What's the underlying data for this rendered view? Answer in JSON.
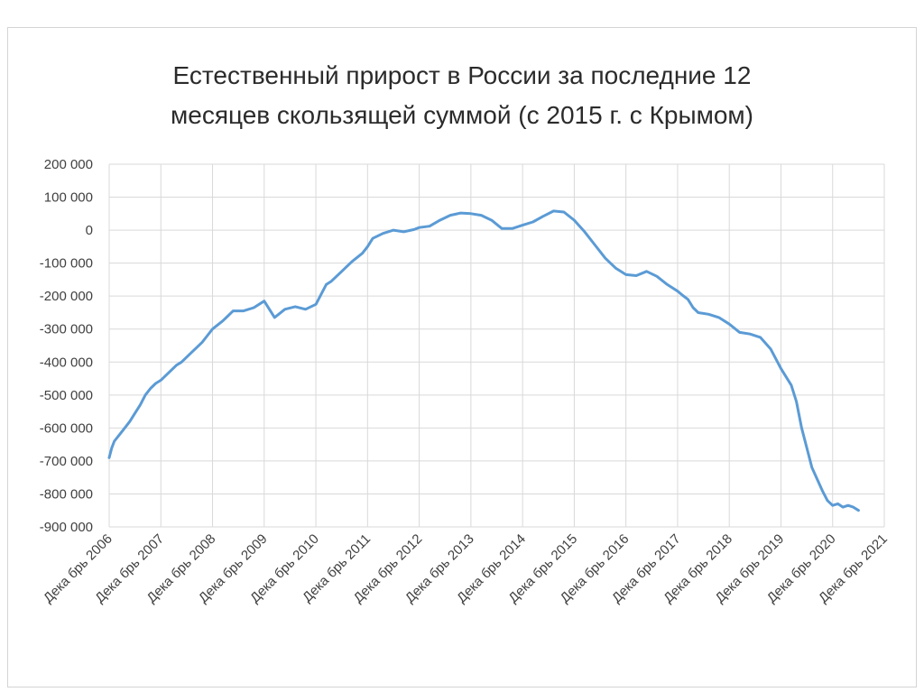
{
  "chart_data": {
    "type": "line",
    "title": [
      "Естественный прирост в России за последние 12",
      "месяцев скользящей суммой (с 2015 г. с Крымом)"
    ],
    "xlabel": "",
    "ylabel": "",
    "ylim": [
      -900000,
      200000
    ],
    "grid": true,
    "line_color": "#5b9bd5",
    "y_ticks": [
      200000,
      100000,
      0,
      -100000,
      -200000,
      -300000,
      -400000,
      -500000,
      -600000,
      -700000,
      -800000,
      -900000
    ],
    "y_tick_labels": [
      "200 000",
      "100 000",
      "0",
      "-100 000",
      "-200 000",
      "-300 000",
      "-400 000",
      "-500 000",
      "-600 000",
      "-700 000",
      "-800 000",
      "-900 000"
    ],
    "x_ticks": [
      2006,
      2007,
      2008,
      2009,
      2010,
      2011,
      2012,
      2013,
      2014,
      2015,
      2016,
      2017,
      2018,
      2019,
      2020,
      2021
    ],
    "x_tick_labels": [
      "Декабрь 2006",
      "Декабрь 2007",
      "Декабрь 2008",
      "Декабрь 2009",
      "Декабрь 2010",
      "Декабрь 2011",
      "Декабрь 2012",
      "Декабрь 2013",
      "Декабрь 2014",
      "Декабрь 2015",
      "Декабрь 2016",
      "Декабрь 2017",
      "Декабрь 2018",
      "Декабрь 2019",
      "Декабрь 2020",
      "Декабрь 2021"
    ],
    "x_tick_label_display": [
      "Дека брь 2006",
      "Дека брь 2007",
      "Дека брь 2008",
      "Дека брь 2009",
      "Дека брь 2010",
      "Дека брь 2011",
      "Дека брь 2012",
      "Дека брь 2013",
      "Дека брь 2014",
      "Дека брь 2015",
      "Дека брь 2016",
      "Дека брь 2017",
      "Дека брь 2018",
      "Дека брь 2019",
      "Дека брь 2020",
      "Дека брь 2021"
    ],
    "series": [
      {
        "x": [
          2006.0,
          2006.05,
          2006.1,
          2006.2,
          2006.3,
          2006.4,
          2006.5,
          2006.6,
          2006.7,
          2006.8,
          2006.9,
          2007.0,
          2007.1,
          2007.2,
          2007.3,
          2007.4,
          2007.5,
          2007.6,
          2007.7,
          2007.8,
          2007.9,
          2008.0,
          2008.2,
          2008.4,
          2008.6,
          2008.8,
          2009.0,
          2009.2,
          2009.4,
          2009.6,
          2009.8,
          2010.0,
          2010.2,
          2010.3,
          2010.5,
          2010.7,
          2010.9,
          2011.0,
          2011.1,
          2011.3,
          2011.5,
          2011.7,
          2011.9,
          2012.0,
          2012.2,
          2012.4,
          2012.6,
          2012.8,
          2013.0,
          2013.2,
          2013.4,
          2013.6,
          2013.8,
          2014.0,
          2014.2,
          2014.4,
          2014.6,
          2014.8,
          2015.0,
          2015.2,
          2015.4,
          2015.6,
          2015.8,
          2016.0,
          2016.2,
          2016.4,
          2016.6,
          2016.8,
          2017.0,
          2017.1,
          2017.2,
          2017.3,
          2017.4,
          2017.6,
          2017.8,
          2018.0,
          2018.2,
          2018.4,
          2018.6,
          2018.8,
          2019.0,
          2019.2,
          2019.3,
          2019.4,
          2019.6,
          2019.8,
          2019.9,
          2020.0,
          2020.1,
          2020.2,
          2020.3,
          2020.4,
          2020.5
        ],
        "values": [
          -690000,
          -660000,
          -640000,
          -620000,
          -600000,
          -580000,
          -555000,
          -530000,
          -500000,
          -480000,
          -465000,
          -455000,
          -440000,
          -425000,
          -410000,
          -400000,
          -385000,
          -370000,
          -355000,
          -340000,
          -320000,
          -300000,
          -275000,
          -245000,
          -245000,
          -235000,
          -215000,
          -265000,
          -240000,
          -232000,
          -240000,
          -225000,
          -165000,
          -155000,
          -125000,
          -95000,
          -70000,
          -50000,
          -25000,
          -10000,
          0,
          -5000,
          2000,
          8000,
          12000,
          30000,
          45000,
          52000,
          50000,
          45000,
          30000,
          5000,
          5000,
          15000,
          25000,
          42000,
          58000,
          55000,
          30000,
          -5000,
          -45000,
          -85000,
          -115000,
          -135000,
          -138000,
          -125000,
          -140000,
          -165000,
          -185000,
          -198000,
          -210000,
          -235000,
          -250000,
          -255000,
          -265000,
          -285000,
          -310000,
          -315000,
          -325000,
          -360000,
          -420000,
          -470000,
          -520000,
          -600000,
          -720000,
          -790000,
          -820000,
          -835000,
          -830000,
          -840000,
          -835000,
          -840000,
          -850000
        ]
      }
    ]
  }
}
